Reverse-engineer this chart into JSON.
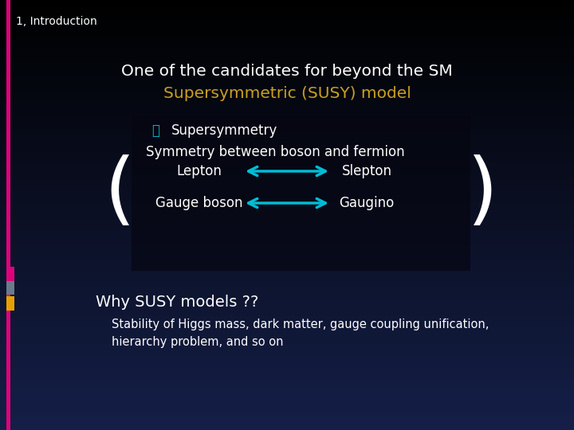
{
  "section_label": "1, Introduction",
  "title_line1": "One of the candidates for beyond the SM",
  "title_line2": "Supersymmetric (SUSY) model",
  "title_line1_color": "#ffffff",
  "title_line2_color": "#c8a020",
  "arrow_color": "#00bcd4",
  "why_title": "Why SUSY models ??",
  "why_detail": "Stability of Higgs mass, dark matter, gauge coupling unification,\nhierarchy problem, and so on",
  "sidebar_main_color": "#e0007a",
  "sidebar_gray_color": "#6a7a8a",
  "sidebar_yellow_color": "#e8a000",
  "lepton_label": "Lepton",
  "slepton_label": "Slepton",
  "gaugeboson_label": "Gauge boson",
  "gaugino_label": "Gaugino"
}
